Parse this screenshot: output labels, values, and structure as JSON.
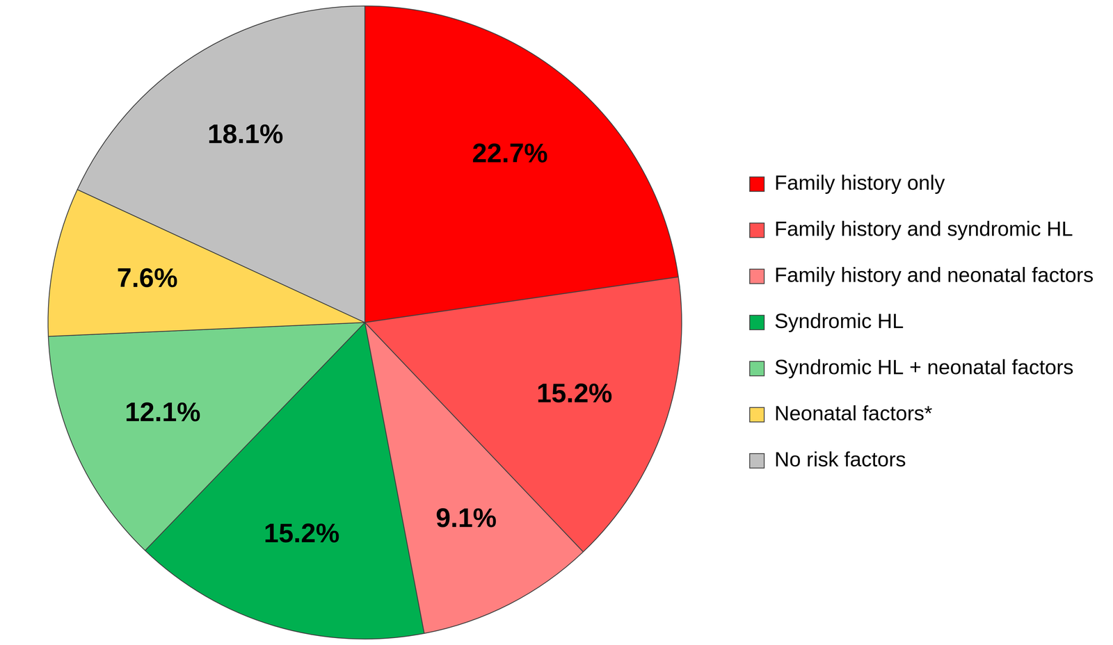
{
  "chart_data": {
    "type": "pie",
    "categories": [
      "Family history only",
      "Family history and syndromic HL",
      "Family history and neonatal factors",
      "Syndromic HL",
      "Syndromic HL + neonatal factors",
      "Neonatal factors*",
      "No risk factors"
    ],
    "values": [
      22.7,
      15.2,
      9.1,
      15.2,
      12.1,
      7.6,
      18.1
    ],
    "value_labels": [
      "22.7%",
      "15.2%",
      "9.1%",
      "15.2%",
      "12.1%",
      "7.6%",
      "18.1%"
    ],
    "colors": [
      "#ff0000",
      "#ff5050",
      "#ff8080",
      "#00b050",
      "#75d48c",
      "#ffd757",
      "#c0c0c0"
    ],
    "data_labels": true,
    "legend": "right"
  }
}
